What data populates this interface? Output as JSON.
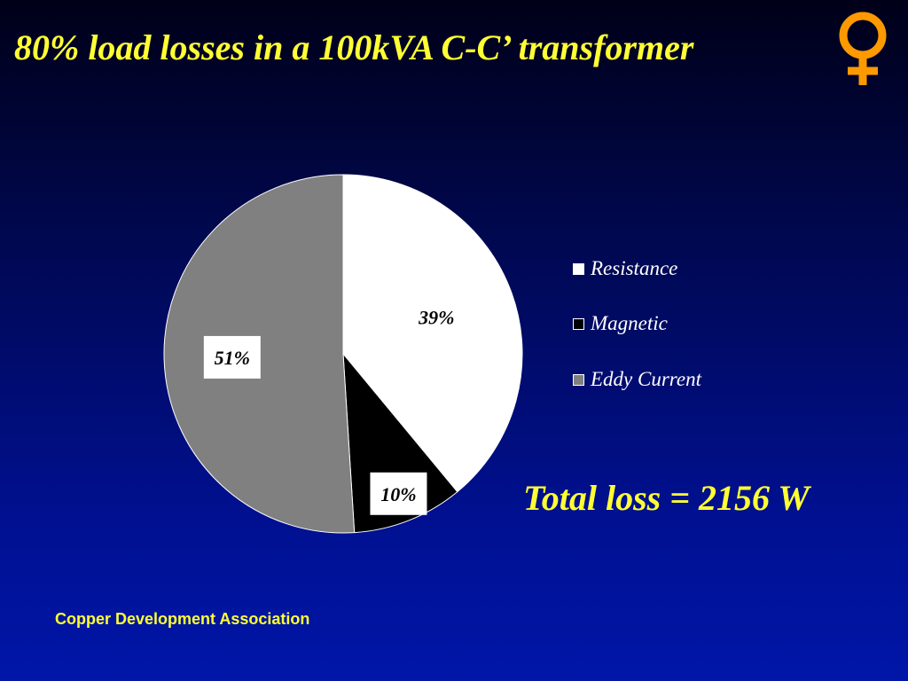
{
  "slide": {
    "title": "80% load losses in a 100kVA C-C’ transformer",
    "total_loss": "Total loss = 2156 W",
    "footer": "Copper Development Association",
    "logo_icon": "venus-copper-symbol-icon",
    "title_color": "#ffff33",
    "logo_color": "#ff9900"
  },
  "chart_data": {
    "type": "pie",
    "title": "",
    "legend_position": "right",
    "slices": [
      {
        "label": "Resistance",
        "value": 39,
        "display": "39%",
        "color": "#ffffff"
      },
      {
        "label": "Magnetic",
        "value": 10,
        "display": "10%",
        "color": "#000000"
      },
      {
        "label": "Eddy Current",
        "value": 51,
        "display": "51%",
        "color": "#808080"
      }
    ]
  }
}
